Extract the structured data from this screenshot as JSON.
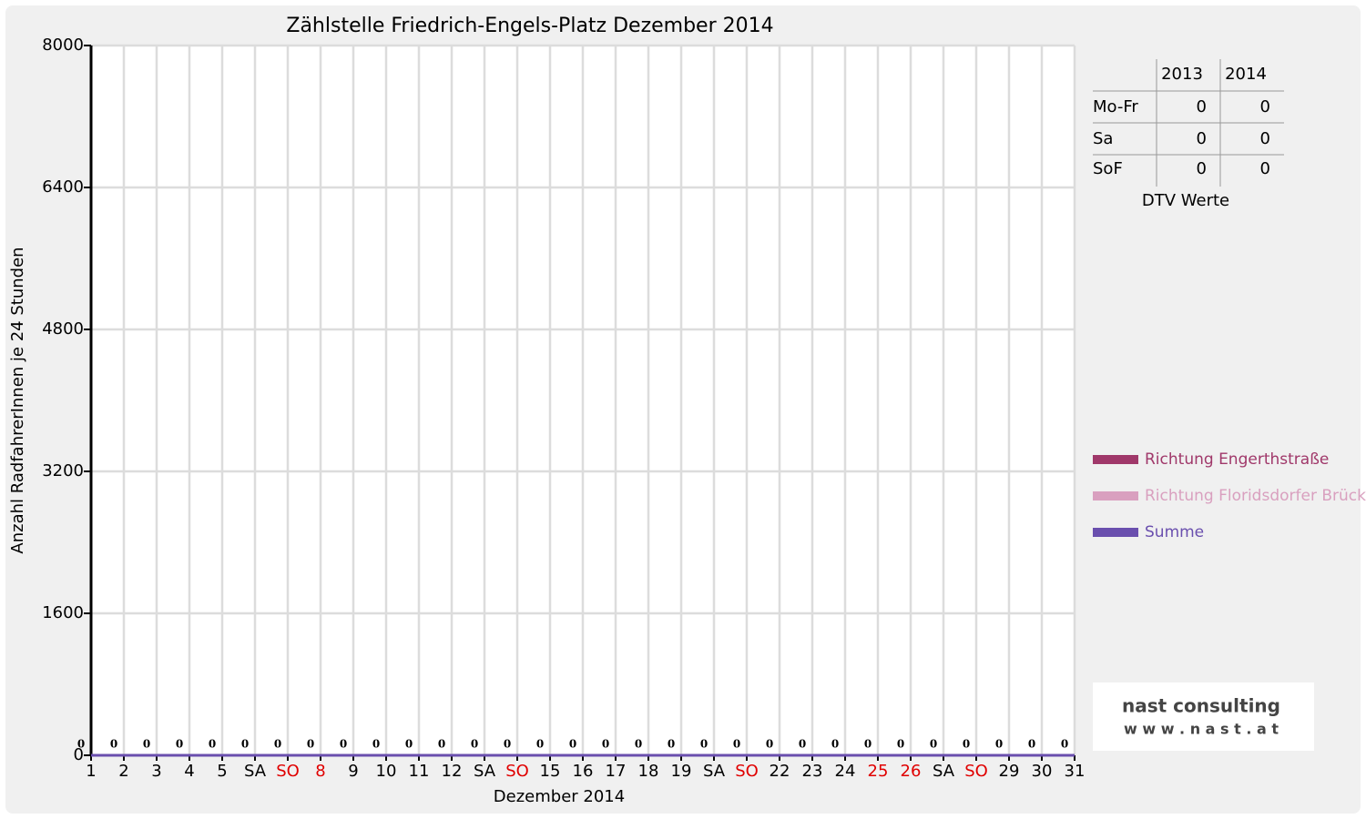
{
  "chart_data": {
    "type": "line",
    "title": "Zählstelle Friedrich-Engels-Platz Dezember 2014",
    "ylabel": "Anzahl RadfahrerInnen je 24 Stunden",
    "xlabel": "Dezember 2014",
    "categories": [
      "1",
      "2",
      "3",
      "4",
      "5",
      "SA",
      "SO",
      "8",
      "9",
      "10",
      "11",
      "12",
      "SA",
      "SO",
      "15",
      "16",
      "17",
      "18",
      "19",
      "SA",
      "SO",
      "22",
      "23",
      "24",
      "25",
      "26",
      "SA",
      "SO",
      "29",
      "30",
      "31"
    ],
    "category_colors": [
      "#000",
      "#000",
      "#000",
      "#000",
      "#000",
      "#000",
      "#e00000",
      "#e00000",
      "#000",
      "#000",
      "#000",
      "#000",
      "#000",
      "#e00000",
      "#000",
      "#000",
      "#000",
      "#000",
      "#000",
      "#000",
      "#e00000",
      "#000",
      "#000",
      "#000",
      "#e00000",
      "#e00000",
      "#000",
      "#e00000",
      "#000",
      "#000",
      "#000"
    ],
    "series": [
      {
        "name": "Richtung Engerthstraße",
        "color": "#a0386a",
        "values": [
          0,
          0,
          0,
          0,
          0,
          0,
          0,
          0,
          0,
          0,
          0,
          0,
          0,
          0,
          0,
          0,
          0,
          0,
          0,
          0,
          0,
          0,
          0,
          0,
          0,
          0,
          0,
          0,
          0,
          0,
          0
        ]
      },
      {
        "name": "Richtung Floridsdorfer Brücke",
        "color": "#d9a0bf",
        "values": [
          0,
          0,
          0,
          0,
          0,
          0,
          0,
          0,
          0,
          0,
          0,
          0,
          0,
          0,
          0,
          0,
          0,
          0,
          0,
          0,
          0,
          0,
          0,
          0,
          0,
          0,
          0,
          0,
          0,
          0,
          0
        ]
      },
      {
        "name": "Summe",
        "color": "#6a4fae",
        "values": [
          0,
          0,
          0,
          0,
          0,
          0,
          0,
          0,
          0,
          0,
          0,
          0,
          0,
          0,
          0,
          0,
          0,
          0,
          0,
          0,
          0,
          0,
          0,
          0,
          0,
          0,
          0,
          0,
          0,
          0,
          0
        ]
      }
    ],
    "ylim": [
      0,
      8000
    ],
    "yticks": [
      0,
      1600,
      3200,
      4800,
      6400,
      8000
    ],
    "grid": true,
    "legend": "right"
  },
  "table": {
    "caption": "DTV Werte",
    "columns": [
      "2013",
      "2014"
    ],
    "rows": [
      {
        "label": "Mo-Fr",
        "values": [
          0,
          0
        ]
      },
      {
        "label": "Sa",
        "values": [
          0,
          0
        ]
      },
      {
        "label": "SoF",
        "values": [
          0,
          0
        ]
      }
    ]
  },
  "logo": {
    "name": "nast consulting",
    "url": "w w w . n a s t . a t"
  }
}
